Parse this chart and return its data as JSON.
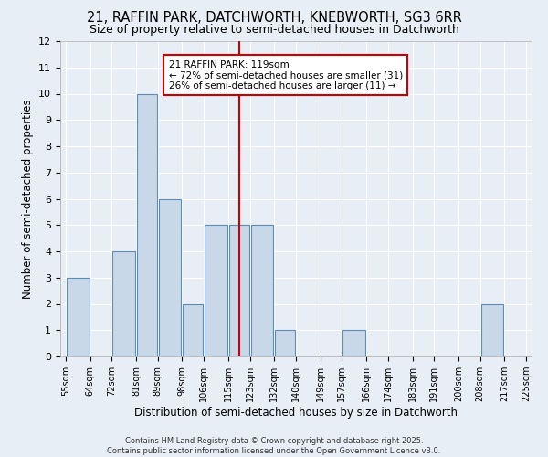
{
  "title": "21, RAFFIN PARK, DATCHWORTH, KNEBWORTH, SG3 6RR",
  "subtitle": "Size of property relative to semi-detached houses in Datchworth",
  "xlabel": "Distribution of semi-detached houses by size in Datchworth",
  "ylabel": "Number of semi-detached properties",
  "bin_edges": [
    55,
    64,
    72,
    81,
    89,
    98,
    106,
    115,
    123,
    132,
    140,
    149,
    157,
    166,
    174,
    183,
    191,
    200,
    208,
    217,
    225
  ],
  "bar_heights": [
    3,
    0,
    4,
    10,
    6,
    2,
    5,
    5,
    5,
    1,
    0,
    0,
    1,
    0,
    0,
    0,
    0,
    0,
    2,
    0
  ],
  "bar_color": "#c8d8e8",
  "bar_edge_color": "#5b8db8",
  "property_value": 119,
  "red_line_color": "#cc0000",
  "annotation_line1": "21 RAFFIN PARK: 119sqm",
  "annotation_line2": "← 72% of semi-detached houses are smaller (31)",
  "annotation_line3": "26% of semi-detached houses are larger (11) →",
  "annotation_box_color": "#ffffff",
  "annotation_box_edge_color": "#cc0000",
  "ylim": [
    0,
    12
  ],
  "yticks": [
    0,
    1,
    2,
    3,
    4,
    5,
    6,
    7,
    8,
    9,
    10,
    11,
    12
  ],
  "background_color": "#e8eef5",
  "grid_color": "#ffffff",
  "footer_line1": "Contains HM Land Registry data © Crown copyright and database right 2025.",
  "footer_line2": "Contains public sector information licensed under the Open Government Licence v3.0.",
  "title_fontsize": 10.5,
  "subtitle_fontsize": 9,
  "axis_label_fontsize": 8.5,
  "tick_fontsize": 7,
  "annotation_fontsize": 7.5,
  "footer_fontsize": 6
}
